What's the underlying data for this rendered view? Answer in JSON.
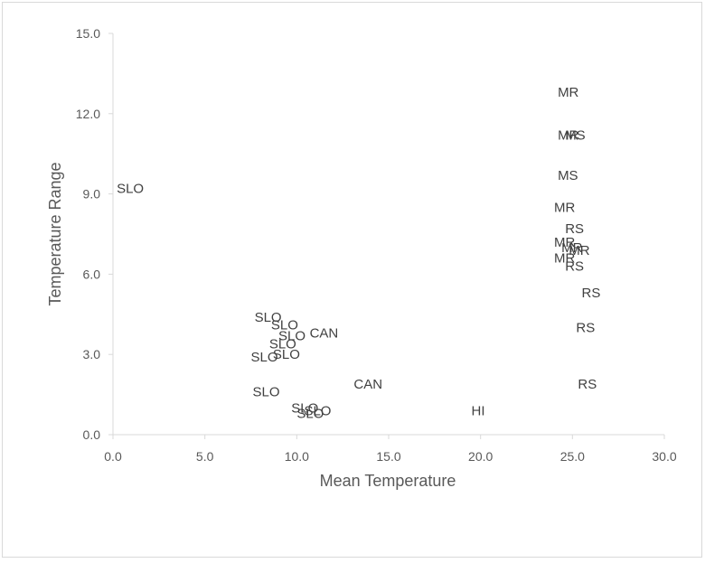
{
  "chart_data": {
    "type": "scatter",
    "xlabel": "Mean Temperature",
    "ylabel": "Temperature Range",
    "xlim": [
      0.0,
      30.0
    ],
    "ylim": [
      0.0,
      15.0
    ],
    "x_ticks": [
      "0.0",
      "5.0",
      "10.0",
      "15.0",
      "20.0",
      "25.0",
      "30.0"
    ],
    "y_ticks": [
      "0.0",
      "3.0",
      "6.0",
      "9.0",
      "12.0",
      "15.0"
    ],
    "grid": false,
    "legend": "none",
    "points": [
      {
        "label": "SLO",
        "x": 0.2,
        "y": 9.2
      },
      {
        "label": "SLO",
        "x": 7.7,
        "y": 4.4
      },
      {
        "label": "SLO",
        "x": 8.6,
        "y": 4.1
      },
      {
        "label": "SLO",
        "x": 9.0,
        "y": 3.7
      },
      {
        "label": "SLO",
        "x": 8.5,
        "y": 3.4
      },
      {
        "label": "SLO",
        "x": 8.7,
        "y": 3.0
      },
      {
        "label": "SLO",
        "x": 7.5,
        "y": 2.9
      },
      {
        "label": "SLO",
        "x": 7.6,
        "y": 1.6
      },
      {
        "label": "SLO",
        "x": 9.7,
        "y": 1.0
      },
      {
        "label": "SLO",
        "x": 10.0,
        "y": 0.8
      },
      {
        "label": "SLO",
        "x": 10.4,
        "y": 0.9
      },
      {
        "label": "CAN",
        "x": 10.7,
        "y": 3.8
      },
      {
        "label": "CAN",
        "x": 13.1,
        "y": 1.9
      },
      {
        "label": "HI",
        "x": 19.5,
        "y": 0.9
      },
      {
        "label": "MR",
        "x": 24.2,
        "y": 12.8
      },
      {
        "label": "MR",
        "x": 24.2,
        "y": 11.2
      },
      {
        "label": "MS",
        "x": 24.6,
        "y": 11.2
      },
      {
        "label": "MS",
        "x": 24.2,
        "y": 9.7
      },
      {
        "label": "MR",
        "x": 24.0,
        "y": 8.5
      },
      {
        "label": "RS",
        "x": 24.6,
        "y": 7.7
      },
      {
        "label": "MR",
        "x": 24.0,
        "y": 7.2
      },
      {
        "label": "MR",
        "x": 24.4,
        "y": 7.0
      },
      {
        "label": "MR",
        "x": 24.8,
        "y": 6.9
      },
      {
        "label": "MR",
        "x": 24.0,
        "y": 6.6
      },
      {
        "label": "RS",
        "x": 24.6,
        "y": 6.3
      },
      {
        "label": "RS",
        "x": 25.5,
        "y": 5.3
      },
      {
        "label": "RS",
        "x": 25.2,
        "y": 4.0
      },
      {
        "label": "RS",
        "x": 25.3,
        "y": 1.9
      }
    ]
  }
}
